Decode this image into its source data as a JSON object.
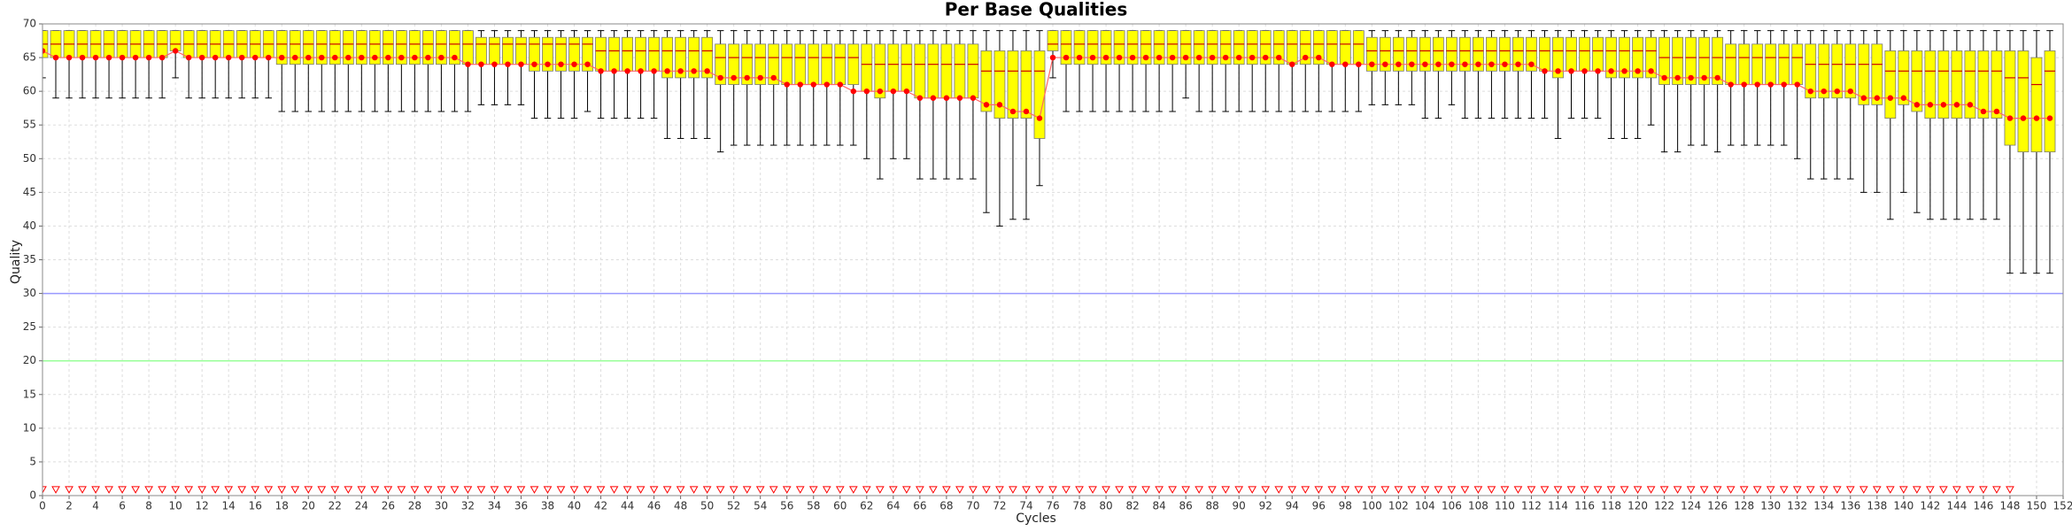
{
  "chart_data": {
    "type": "box",
    "title": "Per Base Qualities",
    "x_label": "Cycles",
    "y_label": "Quality",
    "x": [
      0,
      1,
      2,
      3,
      4,
      5,
      6,
      7,
      8,
      9,
      10,
      11,
      12,
      13,
      14,
      15,
      16,
      17,
      18,
      19,
      20,
      21,
      22,
      23,
      24,
      25,
      26,
      27,
      28,
      29,
      30,
      31,
      32,
      33,
      34,
      35,
      36,
      37,
      38,
      39,
      40,
      41,
      42,
      43,
      44,
      45,
      46,
      47,
      48,
      49,
      50,
      51,
      52,
      53,
      54,
      55,
      56,
      57,
      58,
      59,
      60,
      61,
      62,
      63,
      64,
      65,
      66,
      67,
      68,
      69,
      70,
      71,
      72,
      73,
      74,
      75,
      76,
      77,
      78,
      79,
      80,
      81,
      82,
      83,
      84,
      85,
      86,
      87,
      88,
      89,
      90,
      91,
      92,
      93,
      94,
      95,
      96,
      97,
      98,
      99,
      100,
      101,
      102,
      103,
      104,
      105,
      106,
      107,
      108,
      109,
      110,
      111,
      112,
      113,
      114,
      115,
      116,
      117,
      118,
      119,
      120,
      121,
      122,
      123,
      124,
      125,
      126,
      127,
      128,
      129,
      130,
      131,
      132,
      133,
      134,
      135,
      136,
      137,
      138,
      139,
      140,
      141,
      142,
      143,
      144,
      145,
      146,
      147,
      148,
      149,
      150,
      151
    ],
    "whisker_low": [
      62,
      59,
      59,
      59,
      59,
      59,
      59,
      59,
      59,
      59,
      62,
      59,
      59,
      59,
      59,
      59,
      59,
      59,
      57,
      57,
      57,
      57,
      57,
      57,
      57,
      57,
      57,
      57,
      57,
      57,
      57,
      57,
      57,
      58,
      58,
      58,
      58,
      56,
      56,
      56,
      56,
      57,
      56,
      56,
      56,
      56,
      56,
      53,
      53,
      53,
      53,
      51,
      52,
      52,
      52,
      52,
      52,
      52,
      52,
      52,
      52,
      52,
      50,
      47,
      50,
      50,
      47,
      47,
      47,
      47,
      47,
      42,
      40,
      41,
      41,
      46,
      62,
      57,
      57,
      57,
      57,
      57,
      57,
      57,
      57,
      57,
      59,
      57,
      57,
      57,
      57,
      57,
      57,
      57,
      57,
      57,
      57,
      57,
      57,
      57,
      58,
      58,
      58,
      58,
      56,
      56,
      58,
      56,
      56,
      56,
      56,
      56,
      56,
      56,
      53,
      56,
      56,
      56,
      53,
      53,
      53,
      55,
      51,
      51,
      52,
      52,
      51,
      52,
      52,
      52,
      52,
      52,
      50,
      47,
      47,
      47,
      47,
      45,
      45,
      41,
      45,
      42,
      41,
      41,
      41,
      41,
      41,
      41,
      33,
      33,
      33,
      33
    ],
    "q1": [
      65,
      65,
      65,
      65,
      65,
      65,
      65,
      65,
      65,
      65,
      66,
      65,
      65,
      65,
      65,
      65,
      65,
      65,
      64,
      64,
      64,
      64,
      64,
      64,
      64,
      64,
      64,
      64,
      64,
      64,
      64,
      64,
      64,
      64,
      64,
      64,
      64,
      63,
      63,
      63,
      63,
      63,
      63,
      63,
      63,
      63,
      63,
      62,
      62,
      62,
      62,
      61,
      61,
      61,
      61,
      61,
      61,
      61,
      61,
      61,
      61,
      61,
      60,
      59,
      60,
      60,
      59,
      59,
      59,
      59,
      59,
      57,
      56,
      56,
      56,
      53,
      66,
      64,
      64,
      64,
      64,
      64,
      64,
      64,
      64,
      64,
      64,
      64,
      64,
      64,
      64,
      64,
      64,
      64,
      64,
      64,
      64,
      64,
      64,
      64,
      63,
      63,
      63,
      63,
      63,
      63,
      63,
      63,
      63,
      63,
      63,
      63,
      63,
      63,
      62,
      63,
      63,
      63,
      62,
      62,
      62,
      62,
      61,
      61,
      61,
      61,
      61,
      61,
      61,
      61,
      61,
      61,
      61,
      59,
      59,
      59,
      59,
      58,
      58,
      56,
      58,
      57,
      56,
      56,
      56,
      56,
      56,
      56,
      52,
      51,
      51,
      51
    ],
    "median": [
      67,
      67,
      67,
      67,
      67,
      67,
      67,
      67,
      67,
      67,
      67,
      67,
      67,
      67,
      67,
      67,
      67,
      67,
      67,
      67,
      67,
      67,
      67,
      67,
      67,
      67,
      67,
      67,
      67,
      67,
      67,
      67,
      67,
      67,
      67,
      67,
      67,
      67,
      67,
      67,
      67,
      67,
      66,
      66,
      66,
      66,
      66,
      66,
      66,
      66,
      66,
      65,
      65,
      65,
      65,
      65,
      65,
      65,
      65,
      65,
      65,
      65,
      64,
      64,
      64,
      64,
      64,
      64,
      64,
      64,
      64,
      63,
      63,
      63,
      63,
      63,
      67,
      67,
      67,
      67,
      67,
      67,
      67,
      67,
      67,
      67,
      67,
      67,
      67,
      67,
      67,
      67,
      67,
      67,
      67,
      67,
      67,
      67,
      67,
      67,
      66,
      66,
      66,
      66,
      66,
      66,
      66,
      66,
      66,
      66,
      66,
      66,
      66,
      66,
      66,
      66,
      66,
      66,
      66,
      66,
      66,
      66,
      65,
      65,
      65,
      65,
      65,
      65,
      65,
      65,
      65,
      65,
      65,
      64,
      64,
      64,
      64,
      64,
      64,
      63,
      63,
      63,
      63,
      63,
      63,
      63,
      63,
      63,
      62,
      62,
      61,
      63
    ],
    "q3": [
      69,
      69,
      69,
      69,
      69,
      69,
      69,
      69,
      69,
      69,
      69,
      69,
      69,
      69,
      69,
      69,
      69,
      69,
      69,
      69,
      69,
      69,
      69,
      69,
      69,
      69,
      69,
      69,
      69,
      69,
      69,
      69,
      69,
      68,
      68,
      68,
      68,
      68,
      68,
      68,
      68,
      68,
      68,
      68,
      68,
      68,
      68,
      68,
      68,
      68,
      68,
      67,
      67,
      67,
      67,
      67,
      67,
      67,
      67,
      67,
      67,
      67,
      67,
      67,
      67,
      67,
      67,
      67,
      67,
      67,
      67,
      66,
      66,
      66,
      66,
      66,
      69,
      69,
      69,
      69,
      69,
      69,
      69,
      69,
      69,
      69,
      69,
      69,
      69,
      69,
      69,
      69,
      69,
      69,
      69,
      69,
      69,
      69,
      69,
      69,
      68,
      68,
      68,
      68,
      68,
      68,
      68,
      68,
      68,
      68,
      68,
      68,
      68,
      68,
      68,
      68,
      68,
      68,
      68,
      68,
      68,
      68,
      68,
      68,
      68,
      68,
      68,
      67,
      67,
      67,
      67,
      67,
      67,
      67,
      67,
      67,
      67,
      67,
      67,
      66,
      66,
      66,
      66,
      66,
      66,
      66,
      66,
      66,
      66,
      66,
      65,
      66
    ],
    "whisker_high": [
      69,
      69,
      69,
      69,
      69,
      69,
      69,
      69,
      69,
      69,
      69,
      69,
      69,
      69,
      69,
      69,
      69,
      69,
      69,
      69,
      69,
      69,
      69,
      69,
      69,
      69,
      69,
      69,
      69,
      69,
      69,
      69,
      69,
      69,
      69,
      69,
      69,
      69,
      69,
      69,
      69,
      69,
      69,
      69,
      69,
      69,
      69,
      69,
      69,
      69,
      69,
      69,
      69,
      69,
      69,
      69,
      69,
      69,
      69,
      69,
      69,
      69,
      69,
      69,
      69,
      69,
      69,
      69,
      69,
      69,
      69,
      69,
      69,
      69,
      69,
      69,
      69,
      69,
      69,
      69,
      69,
      69,
      69,
      69,
      69,
      69,
      69,
      69,
      69,
      69,
      69,
      69,
      69,
      69,
      69,
      69,
      69,
      69,
      69,
      69,
      69,
      69,
      69,
      69,
      69,
      69,
      69,
      69,
      69,
      69,
      69,
      69,
      69,
      69,
      69,
      69,
      69,
      69,
      69,
      69,
      69,
      69,
      69,
      69,
      69,
      69,
      69,
      69,
      69,
      69,
      69,
      69,
      69,
      69,
      69,
      69,
      69,
      69,
      69,
      69,
      69,
      69,
      69,
      69,
      69,
      69,
      69,
      69,
      69,
      69,
      69,
      69
    ],
    "mean": [
      66,
      65,
      65,
      65,
      65,
      65,
      65,
      65,
      65,
      65,
      66,
      65,
      65,
      65,
      65,
      65,
      65,
      65,
      65,
      65,
      65,
      65,
      65,
      65,
      65,
      65,
      65,
      65,
      65,
      65,
      65,
      65,
      64,
      64,
      64,
      64,
      64,
      64,
      64,
      64,
      64,
      64,
      63,
      63,
      63,
      63,
      63,
      63,
      63,
      63,
      63,
      62,
      62,
      62,
      62,
      62,
      61,
      61,
      61,
      61,
      61,
      60,
      60,
      60,
      60,
      60,
      59,
      59,
      59,
      59,
      59,
      58,
      58,
      57,
      57,
      56,
      65,
      65,
      65,
      65,
      65,
      65,
      65,
      65,
      65,
      65,
      65,
      65,
      65,
      65,
      65,
      65,
      65,
      65,
      64,
      65,
      65,
      64,
      64,
      64,
      64,
      64,
      64,
      64,
      64,
      64,
      64,
      64,
      64,
      64,
      64,
      64,
      64,
      63,
      63,
      63,
      63,
      63,
      63,
      63,
      63,
      63,
      62,
      62,
      62,
      62,
      62,
      61,
      61,
      61,
      61,
      61,
      61,
      60,
      60,
      60,
      60,
      59,
      59,
      59,
      59,
      58,
      58,
      58,
      58,
      58,
      57,
      57,
      56,
      56,
      56,
      56
    ],
    "box_color": "#ffff00",
    "median_color": "#cc0000",
    "mean_color": "#ff0000",
    "mean_line_color": "#ff6666",
    "low_markers": {
      "color": "#ff0000",
      "values": [
        0.8,
        0.8,
        0.8,
        0.8,
        0.8,
        0.8,
        0.8,
        0.8,
        0.8,
        0.8,
        0.8,
        0.8,
        0.8,
        0.8,
        0.8,
        0.8,
        0.8,
        0.8,
        0.8,
        0.8,
        0.8,
        0.8,
        0.8,
        0.8,
        0.8,
        0.8,
        0.8,
        0.8,
        0.8,
        0.8,
        0.8,
        0.8,
        0.8,
        0.8,
        0.8,
        0.8,
        0.8,
        0.8,
        0.8,
        0.8,
        0.8,
        0.8,
        0.8,
        0.8,
        0.8,
        0.8,
        0.8,
        0.8,
        0.8,
        0.8,
        0.8,
        0.8,
        0.8,
        0.8,
        0.8,
        0.8,
        0.8,
        0.8,
        0.8,
        0.8,
        0.8,
        0.8,
        0.8,
        0.8,
        0.8,
        0.8,
        0.8,
        0.8,
        0.8,
        0.8,
        0.8,
        0.8,
        0.8,
        0.8,
        0.8,
        0.8,
        0.8,
        0.8,
        0.8,
        0.8,
        0.8,
        0.8,
        0.8,
        0.8,
        0.8,
        0.8,
        0.8,
        0.8,
        0.8,
        0.8,
        0.8,
        0.8,
        0.8,
        0.8,
        0.8,
        0.8,
        0.8,
        0.8,
        0.8,
        0.8,
        0.8,
        0.8,
        0.8,
        0.8,
        0.8,
        0.8,
        0.8,
        0.8,
        0.8,
        0.8,
        0.8,
        0.8,
        0.8,
        0.8,
        0.8,
        0.8,
        0.8,
        0.8,
        0.8,
        0.8,
        0.8,
        0.8,
        0.8,
        0.8,
        0.8,
        0.8,
        0.8,
        0.8,
        0.8,
        0.8,
        0.8,
        0.8,
        0.8,
        0.8,
        0.8,
        0.8,
        0.8,
        0.8,
        0.8,
        0.8,
        0.8,
        0.8,
        0.8,
        0.8,
        0.8,
        0.8,
        0.8,
        0.8,
        0.8
      ]
    },
    "hlines": [
      {
        "value": 30,
        "color": "#9999ff"
      },
      {
        "value": 20,
        "color": "#99ff99"
      }
    ],
    "xlim": [
      0,
      152
    ],
    "ylim": [
      0,
      70
    ],
    "xticks": [
      0,
      2,
      4,
      6,
      8,
      10,
      12,
      14,
      16,
      18,
      20,
      22,
      24,
      26,
      28,
      30,
      32,
      34,
      36,
      38,
      40,
      42,
      44,
      46,
      48,
      50,
      52,
      54,
      56,
      58,
      60,
      62,
      64,
      66,
      68,
      70,
      72,
      74,
      76,
      78,
      80,
      82,
      84,
      86,
      88,
      90,
      92,
      94,
      96,
      98,
      100,
      102,
      104,
      106,
      108,
      110,
      112,
      114,
      116,
      118,
      120,
      122,
      124,
      126,
      128,
      130,
      132,
      134,
      136,
      138,
      140,
      142,
      144,
      146,
      148,
      150,
      152
    ],
    "yticks": [
      0,
      5,
      10,
      15,
      20,
      25,
      30,
      35,
      40,
      45,
      50,
      55,
      60,
      65,
      70
    ],
    "grid": true
  }
}
